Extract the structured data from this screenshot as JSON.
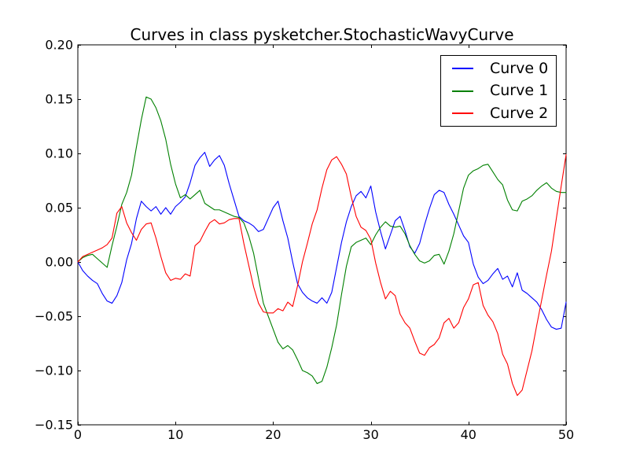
{
  "chart": {
    "title": "Curves in class pysketcher.StochasticWavyCurve"
  },
  "axes": {
    "xlim": [
      0,
      50
    ],
    "ylim": [
      -0.15,
      0.2
    ],
    "x_ticks": [
      0,
      10,
      20,
      30,
      40,
      50
    ],
    "x_tick_labels": [
      "0",
      "10",
      "20",
      "30",
      "40",
      "50"
    ],
    "y_ticks": [
      0.2,
      0.15,
      0.1,
      0.05,
      0.0,
      -0.05,
      -0.1,
      -0.15
    ],
    "y_tick_labels": [
      "0.20",
      "0.15",
      "0.10",
      "0.05",
      "0.00",
      "−0.05",
      "−0.10",
      "−0.15"
    ],
    "frame_color": "#000000",
    "background": "#ffffff",
    "tick_direction": "in"
  },
  "legend": {
    "position": "upper right",
    "items": [
      {
        "label": "Curve 0",
        "color": "#0000ff"
      },
      {
        "label": "Curve 1",
        "color": "#008000"
      },
      {
        "label": "Curve 2",
        "color": "#ff0000"
      }
    ]
  },
  "chart_data": {
    "type": "line",
    "title": "Curves in class pysketcher.StochasticWavyCurve",
    "xlabel": "",
    "ylabel": "",
    "xlim": [
      0,
      50
    ],
    "ylim": [
      -0.15,
      0.2
    ],
    "grid": false,
    "legend_position": "upper right",
    "x": [
      0,
      0.5,
      1,
      1.5,
      2,
      2.5,
      3,
      3.5,
      4,
      4.5,
      5,
      5.5,
      6,
      6.5,
      7,
      7.5,
      8,
      8.5,
      9,
      9.5,
      10,
      10.5,
      11,
      11.5,
      12,
      12.5,
      13,
      13.5,
      14,
      14.5,
      15,
      15.5,
      16,
      16.5,
      17,
      17.5,
      18,
      18.5,
      19,
      19.5,
      20,
      20.5,
      21,
      21.5,
      22,
      22.5,
      23,
      23.5,
      24,
      24.5,
      25,
      25.5,
      26,
      26.5,
      27,
      27.5,
      28,
      28.5,
      29,
      29.5,
      30,
      30.5,
      31,
      31.5,
      32,
      32.5,
      33,
      33.5,
      34,
      34.5,
      35,
      35.5,
      36,
      36.5,
      37,
      37.5,
      38,
      38.5,
      39,
      39.5,
      40,
      40.5,
      41,
      41.5,
      42,
      42.5,
      43,
      43.5,
      44,
      44.5,
      45,
      45.5,
      46,
      46.5,
      47,
      47.5,
      48,
      48.5,
      49,
      49.5,
      50
    ],
    "series": [
      {
        "name": "Curve 0",
        "color": "#0000ff",
        "values": [
          0.0,
          -0.008,
          -0.013,
          -0.017,
          -0.02,
          -0.029,
          -0.036,
          -0.038,
          -0.031,
          -0.019,
          0.002,
          0.017,
          0.04,
          0.056,
          0.051,
          0.047,
          0.051,
          0.044,
          0.05,
          0.044,
          0.051,
          0.055,
          0.06,
          0.073,
          0.089,
          0.096,
          0.101,
          0.088,
          0.094,
          0.098,
          0.089,
          0.072,
          0.057,
          0.042,
          0.038,
          0.036,
          0.033,
          0.028,
          0.03,
          0.04,
          0.05,
          0.056,
          0.038,
          0.022,
          0.0,
          -0.02,
          -0.028,
          -0.033,
          -0.036,
          -0.038,
          -0.033,
          -0.038,
          -0.028,
          -0.005,
          0.018,
          0.037,
          0.051,
          0.061,
          0.065,
          0.059,
          0.07,
          0.046,
          0.028,
          0.012,
          0.025,
          0.038,
          0.042,
          0.029,
          0.014,
          0.008,
          0.017,
          0.034,
          0.049,
          0.062,
          0.066,
          0.064,
          0.053,
          0.044,
          0.034,
          0.024,
          0.018,
          -0.002,
          -0.014,
          -0.02,
          -0.017,
          -0.011,
          -0.006,
          -0.016,
          -0.013,
          -0.023,
          -0.01,
          -0.026,
          -0.029,
          -0.033,
          -0.037,
          -0.044,
          -0.053,
          -0.06,
          -0.062,
          -0.061,
          -0.037
        ]
      },
      {
        "name": "Curve 1",
        "color": "#008000",
        "values": [
          0.0,
          0.004,
          0.006,
          0.007,
          0.003,
          -0.001,
          -0.005,
          0.015,
          0.033,
          0.053,
          0.064,
          0.08,
          0.106,
          0.131,
          0.152,
          0.15,
          0.142,
          0.13,
          0.113,
          0.09,
          0.072,
          0.059,
          0.062,
          0.058,
          0.062,
          0.066,
          0.054,
          0.051,
          0.048,
          0.048,
          0.046,
          0.044,
          0.042,
          0.041,
          0.036,
          0.024,
          0.008,
          -0.015,
          -0.038,
          -0.05,
          -0.062,
          -0.074,
          -0.08,
          -0.077,
          -0.081,
          -0.09,
          -0.1,
          -0.102,
          -0.105,
          -0.112,
          -0.11,
          -0.097,
          -0.079,
          -0.058,
          -0.03,
          -0.004,
          0.014,
          0.018,
          0.02,
          0.022,
          0.016,
          0.025,
          0.032,
          0.037,
          0.033,
          0.032,
          0.033,
          0.026,
          0.015,
          0.007,
          0.001,
          -0.001,
          0.001,
          0.006,
          0.007,
          -0.002,
          0.01,
          0.026,
          0.047,
          0.068,
          0.08,
          0.084,
          0.086,
          0.089,
          0.09,
          0.083,
          0.076,
          0.071,
          0.057,
          0.048,
          0.047,
          0.056,
          0.058,
          0.061,
          0.066,
          0.07,
          0.073,
          0.068,
          0.065,
          0.064,
          0.064
        ]
      },
      {
        "name": "Curve 2",
        "color": "#ff0000",
        "values": [
          0.0,
          0.005,
          0.007,
          0.009,
          0.011,
          0.013,
          0.016,
          0.022,
          0.045,
          0.051,
          0.036,
          0.027,
          0.02,
          0.03,
          0.035,
          0.036,
          0.022,
          0.005,
          -0.01,
          -0.017,
          -0.015,
          -0.016,
          -0.011,
          -0.013,
          0.015,
          0.019,
          0.028,
          0.036,
          0.039,
          0.035,
          0.036,
          0.039,
          0.04,
          0.04,
          0.017,
          -0.003,
          -0.023,
          -0.038,
          -0.046,
          -0.047,
          -0.047,
          -0.043,
          -0.045,
          -0.037,
          -0.041,
          -0.022,
          0.0,
          0.017,
          0.035,
          0.048,
          0.068,
          0.085,
          0.094,
          0.097,
          0.09,
          0.081,
          0.06,
          0.042,
          0.032,
          0.029,
          0.021,
          -0.001,
          -0.019,
          -0.034,
          -0.027,
          -0.031,
          -0.048,
          -0.056,
          -0.061,
          -0.073,
          -0.084,
          -0.086,
          -0.079,
          -0.076,
          -0.07,
          -0.056,
          -0.052,
          -0.061,
          -0.056,
          -0.042,
          -0.034,
          -0.021,
          -0.019,
          -0.04,
          -0.049,
          -0.055,
          -0.066,
          -0.085,
          -0.094,
          -0.112,
          -0.123,
          -0.118,
          -0.1,
          -0.082,
          -0.058,
          -0.035,
          -0.012,
          0.01,
          0.04,
          0.07,
          0.099
        ]
      }
    ]
  }
}
